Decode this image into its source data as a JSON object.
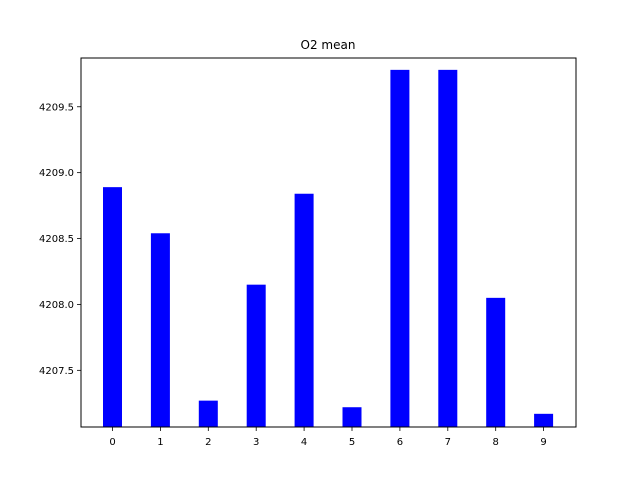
{
  "chart_data": {
    "type": "bar",
    "title": "O2 mean",
    "xlabel": "",
    "ylabel": "",
    "categories": [
      "0",
      "1",
      "2",
      "3",
      "4",
      "5",
      "6",
      "7",
      "8",
      "9"
    ],
    "values": [
      4208.89,
      4208.54,
      4207.27,
      4208.15,
      4208.84,
      4207.22,
      4209.78,
      4209.78,
      4208.05,
      4207.17
    ],
    "ylim": [
      4207.07,
      4209.87
    ],
    "yticks": [
      4207.5,
      4208.0,
      4208.5,
      4209.0,
      4209.5
    ],
    "ytick_labels": [
      "4207.5",
      "4208.0",
      "4208.5",
      "4209.0",
      "4209.5"
    ],
    "grid": false,
    "bar_color": "#0000ff"
  }
}
